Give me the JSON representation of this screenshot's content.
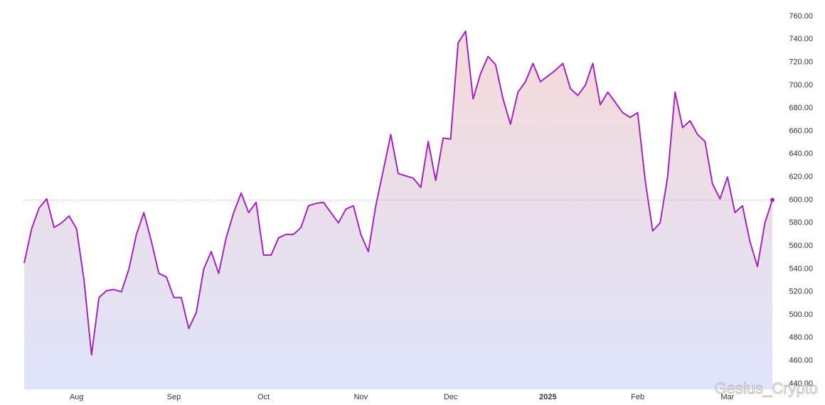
{
  "chart_data": {
    "type": "area",
    "categories": [
      null,
      null,
      null,
      null,
      null,
      null,
      null,
      "Aug",
      null,
      null,
      null,
      null,
      null,
      null,
      null,
      null,
      null,
      null,
      null,
      null,
      "Sep",
      null,
      null,
      null,
      null,
      null,
      null,
      null,
      null,
      null,
      null,
      null,
      "Oct",
      null,
      null,
      null,
      null,
      null,
      null,
      null,
      null,
      null,
      null,
      null,
      null,
      "Nov",
      null,
      null,
      null,
      null,
      null,
      null,
      null,
      null,
      null,
      null,
      null,
      "Dec",
      null,
      null,
      null,
      null,
      null,
      null,
      null,
      null,
      null,
      null,
      null,
      null,
      "2025",
      null,
      null,
      null,
      null,
      null,
      null,
      null,
      null,
      null,
      null,
      null,
      "Feb",
      null,
      null,
      null,
      null,
      null,
      null,
      null,
      null,
      null,
      null,
      null,
      "Mar",
      null,
      null,
      null,
      null,
      null,
      null
    ],
    "values": [
      545,
      575,
      593,
      601,
      576,
      580,
      586,
      575,
      530,
      465,
      515,
      521,
      522,
      520,
      540,
      570,
      589,
      564,
      536,
      533,
      515,
      515,
      488,
      502,
      540,
      555,
      536,
      567,
      589,
      606,
      589,
      598,
      552,
      552,
      567,
      570,
      570,
      576,
      595,
      597,
      598,
      589,
      580,
      592,
      595,
      570,
      555,
      595,
      626,
      657,
      623,
      621,
      619,
      611,
      651,
      617,
      654,
      653,
      737,
      747,
      688,
      710,
      725,
      718,
      688,
      666,
      694,
      703,
      719,
      703,
      708,
      713,
      719,
      697,
      691,
      700,
      719,
      683,
      694,
      685,
      676,
      672,
      676,
      617,
      573,
      580,
      620,
      694,
      663,
      669,
      657,
      651,
      614,
      601,
      620,
      589,
      595,
      564,
      542,
      580,
      600
    ],
    "color": "#a324bd",
    "reference_line": 600,
    "ylim": [
      435,
      768
    ],
    "yticks": [
      {
        "value": 440,
        "label": "440.00"
      },
      {
        "value": 460,
        "label": "460.00"
      },
      {
        "value": 480,
        "label": "480.00"
      },
      {
        "value": 500,
        "label": "500.00"
      },
      {
        "value": 520,
        "label": "520.00"
      },
      {
        "value": 540,
        "label": "540.00"
      },
      {
        "value": 560,
        "label": "560.00"
      },
      {
        "value": 580,
        "label": "580.00"
      },
      {
        "value": 600,
        "label": "600.00"
      },
      {
        "value": 620,
        "label": "620.00"
      },
      {
        "value": 640,
        "label": "640.00"
      },
      {
        "value": 660,
        "label": "660.00"
      },
      {
        "value": 680,
        "label": "680.00"
      },
      {
        "value": 700,
        "label": "700.00"
      },
      {
        "value": 720,
        "label": "720.00"
      },
      {
        "value": 740,
        "label": "740.00"
      },
      {
        "value": 760,
        "label": "760.00"
      }
    ],
    "watermark": "Gesius_Crypto"
  }
}
